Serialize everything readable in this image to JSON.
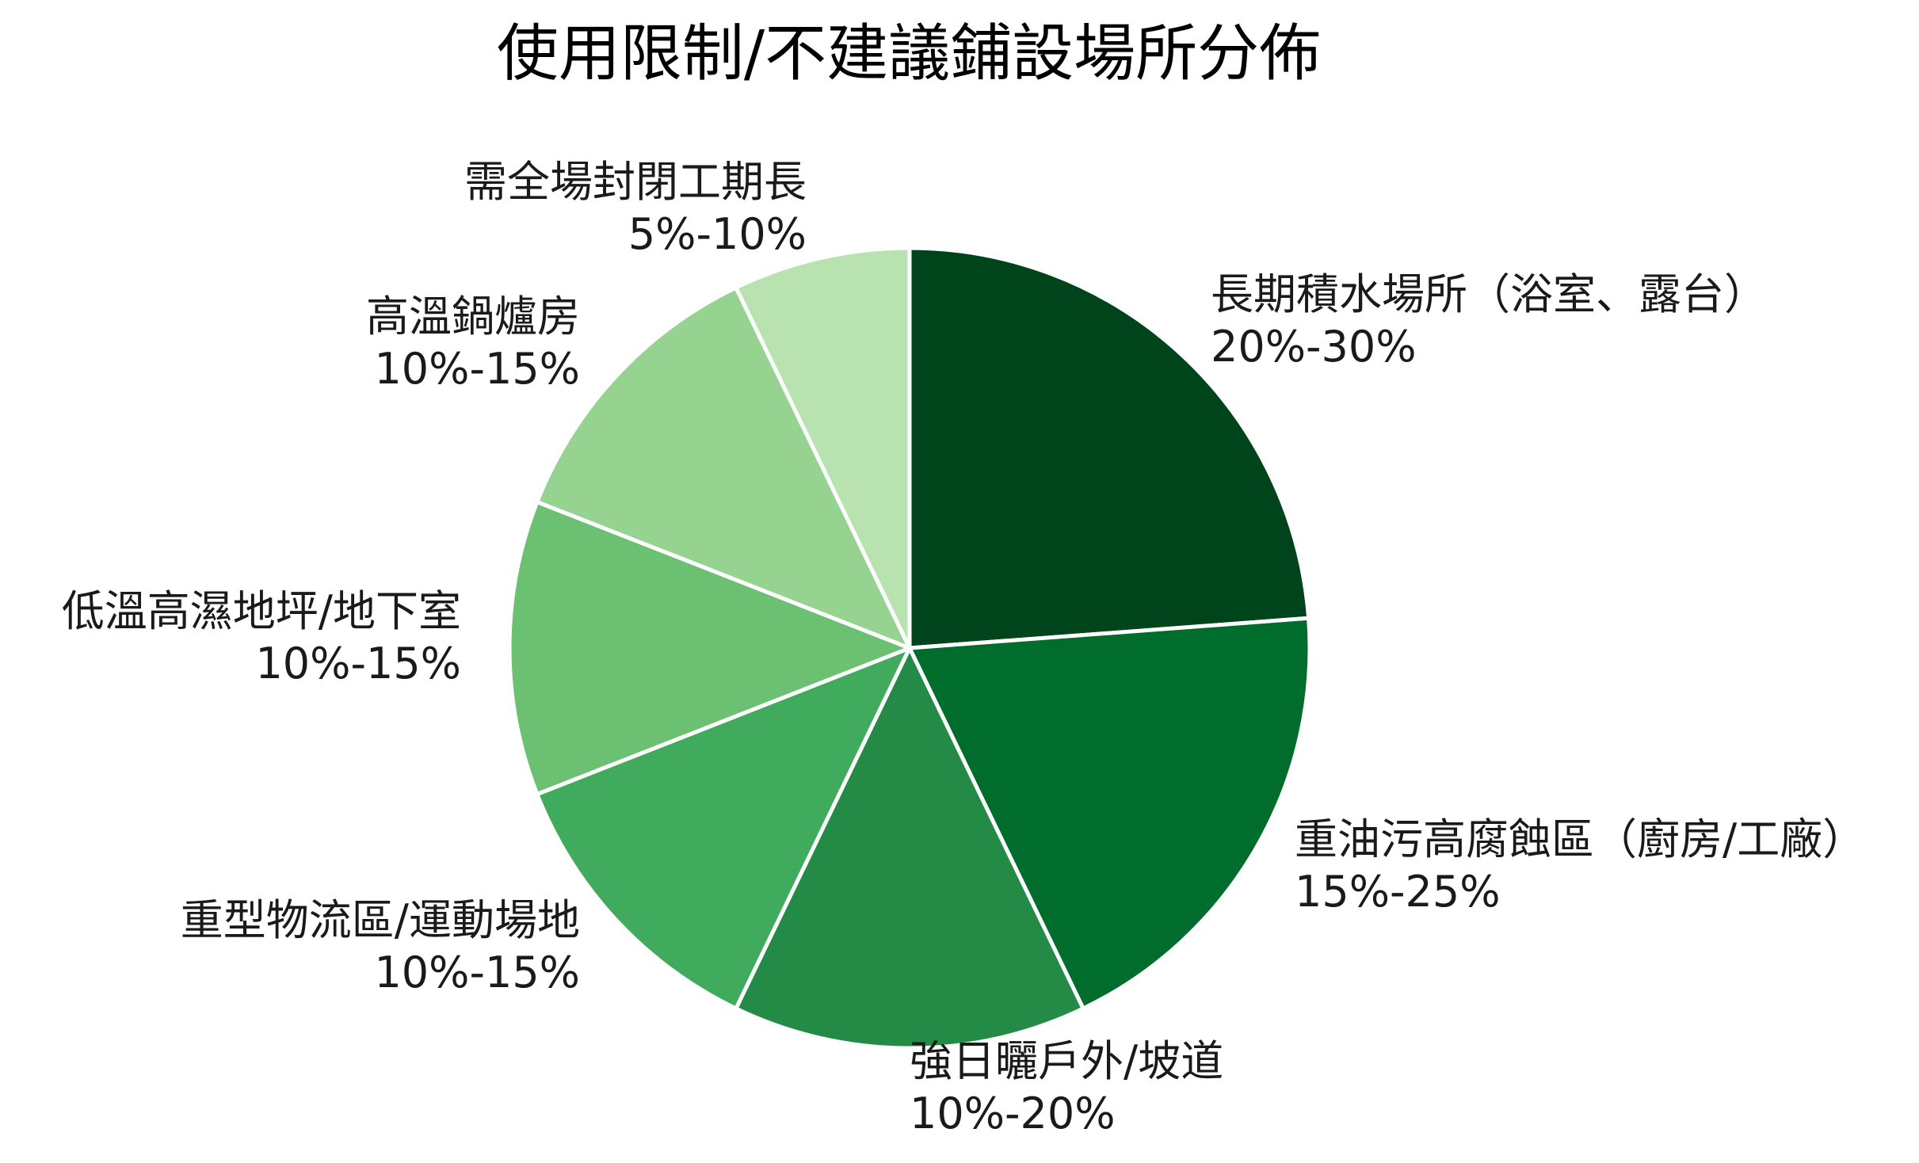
{
  "chart_data": {
    "type": "pie",
    "title": "使用限制/不建議鋪設場所分佈",
    "start": "12 o'clock",
    "direction": "clockwise",
    "slices": [
      {
        "label": "長期積水場所（浴室、露台）",
        "range": "20%-30%",
        "value": 25,
        "color": "#00441b"
      },
      {
        "label": "重油污高腐蝕區（廚房/工廠）",
        "range": "15%-25%",
        "value": 20,
        "color": "#006d2c"
      },
      {
        "label": "強日曬戶外/坡道",
        "range": "10%-20%",
        "value": 15,
        "color": "#238b45"
      },
      {
        "label": "重型物流區/運動場地",
        "range": "10%-15%",
        "value": 12.5,
        "color": "#41ab5d"
      },
      {
        "label": "低溫高濕地坪/地下室",
        "range": "10%-15%",
        "value": 12.5,
        "color": "#6bc072"
      },
      {
        "label": "高溫鍋爐房",
        "range": "10%-15%",
        "value": 12.5,
        "color": "#96d391"
      },
      {
        "label": "需全場封閉工期長",
        "range": "5%-10%",
        "value": 7.5,
        "color": "#b8e3b1"
      }
    ]
  }
}
